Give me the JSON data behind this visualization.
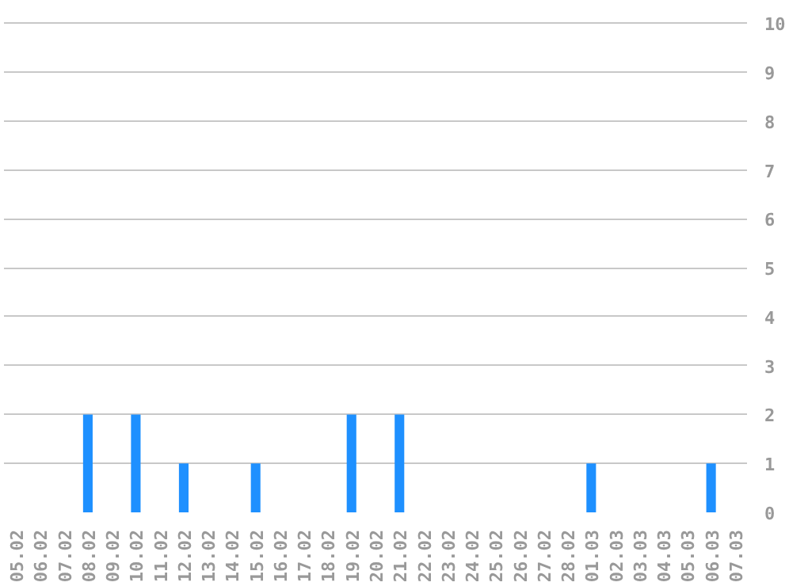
{
  "chart_data": {
    "type": "bar",
    "categories": [
      "05.02",
      "06.02",
      "07.02",
      "08.02",
      "09.02",
      "10.02",
      "11.02",
      "12.02",
      "13.02",
      "14.02",
      "15.02",
      "16.02",
      "17.02",
      "18.02",
      "19.02",
      "20.02",
      "21.02",
      "22.02",
      "23.02",
      "24.02",
      "25.02",
      "26.02",
      "27.02",
      "28.02",
      "01.03",
      "02.03",
      "03.03",
      "04.03",
      "05.03",
      "06.03",
      "07.03"
    ],
    "values": [
      0,
      0,
      0,
      2,
      0,
      2,
      0,
      1,
      0,
      0,
      1,
      0,
      0,
      0,
      2,
      0,
      2,
      0,
      0,
      0,
      0,
      0,
      0,
      0,
      1,
      0,
      0,
      0,
      0,
      1,
      0
    ],
    "color": "#1e90ff",
    "ylim": [
      0,
      10
    ],
    "yticks": [
      0,
      1,
      2,
      3,
      4,
      5,
      6,
      7,
      8,
      9,
      10
    ],
    "grid": "y"
  }
}
